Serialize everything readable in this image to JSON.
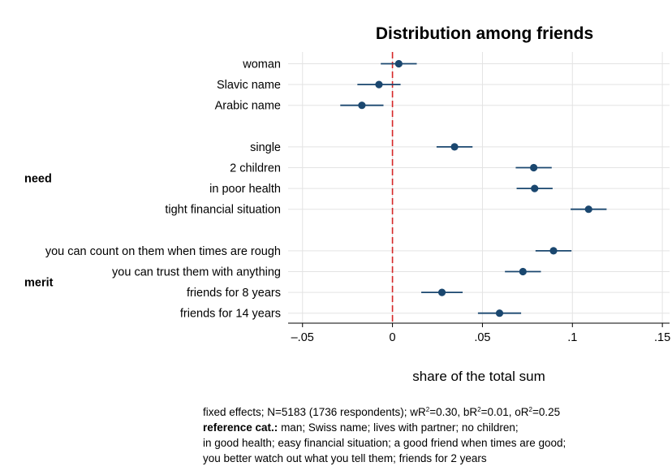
{
  "chart_data": {
    "type": "scatter",
    "title": "Distribution among friends",
    "xlabel": "share of the total sum",
    "xlim": [
      -0.058,
      0.154
    ],
    "xticks": [
      {
        "value": -0.05,
        "label": "–.05"
      },
      {
        "value": 0,
        "label": "0"
      },
      {
        "value": 0.05,
        "label": ".05"
      },
      {
        "value": 0.1,
        "label": ".1"
      },
      {
        "value": 0.15,
        "label": ".15"
      }
    ],
    "reference_line": 0,
    "grid": true,
    "groups": [
      {
        "label": "",
        "items": [
          {
            "label": "woman",
            "value": 0.0035,
            "ci": [
              -0.0065,
              0.0135
            ]
          },
          {
            "label": "Slavic name",
            "value": -0.0075,
            "ci": [
              -0.0195,
              0.0045
            ]
          },
          {
            "label": "Arabic name",
            "value": -0.017,
            "ci": [
              -0.029,
              -0.005
            ]
          }
        ]
      },
      {
        "label": "need",
        "items": [
          {
            "label": "single",
            "value": 0.0345,
            "ci": [
              0.0245,
              0.0445
            ]
          },
          {
            "label": "2 children",
            "value": 0.0785,
            "ci": [
              0.0685,
              0.0885
            ]
          },
          {
            "label": "in poor health",
            "value": 0.079,
            "ci": [
              0.069,
              0.089
            ]
          },
          {
            "label": "tight financial situation",
            "value": 0.109,
            "ci": [
              0.099,
              0.119
            ]
          }
        ]
      },
      {
        "label": "merit",
        "items": [
          {
            "label": "you can count on them when times are rough",
            "value": 0.0895,
            "ci": [
              0.0795,
              0.0995
            ]
          },
          {
            "label": "you can trust them with anything",
            "value": 0.0725,
            "ci": [
              0.0625,
              0.0825
            ]
          },
          {
            "label": "friends for 8 years",
            "value": 0.0275,
            "ci": [
              0.016,
              0.039
            ]
          },
          {
            "label": "friends for 14 years",
            "value": 0.0595,
            "ci": [
              0.0475,
              0.0715
            ]
          }
        ]
      }
    ]
  },
  "notes": {
    "line1_a": "fixed effects; N=5183 (1736 respondents); wR",
    "line1_b": "=0.30, bR",
    "line1_c": "=0.01, oR",
    "line1_d": "=0.25",
    "sup": "2",
    "line2_bold": "reference cat.:",
    "line2_rest": " man; Swiss name; lives with partner; no children;",
    "line3": "in good health; easy financial situation; a good friend when times are good;",
    "line4": "you better watch out what you tell them; friends for 2 years"
  },
  "colors": {
    "marker": "#1a476f",
    "refline": "#d62728",
    "grid": "#e3e3e3",
    "axis": "#000000"
  }
}
